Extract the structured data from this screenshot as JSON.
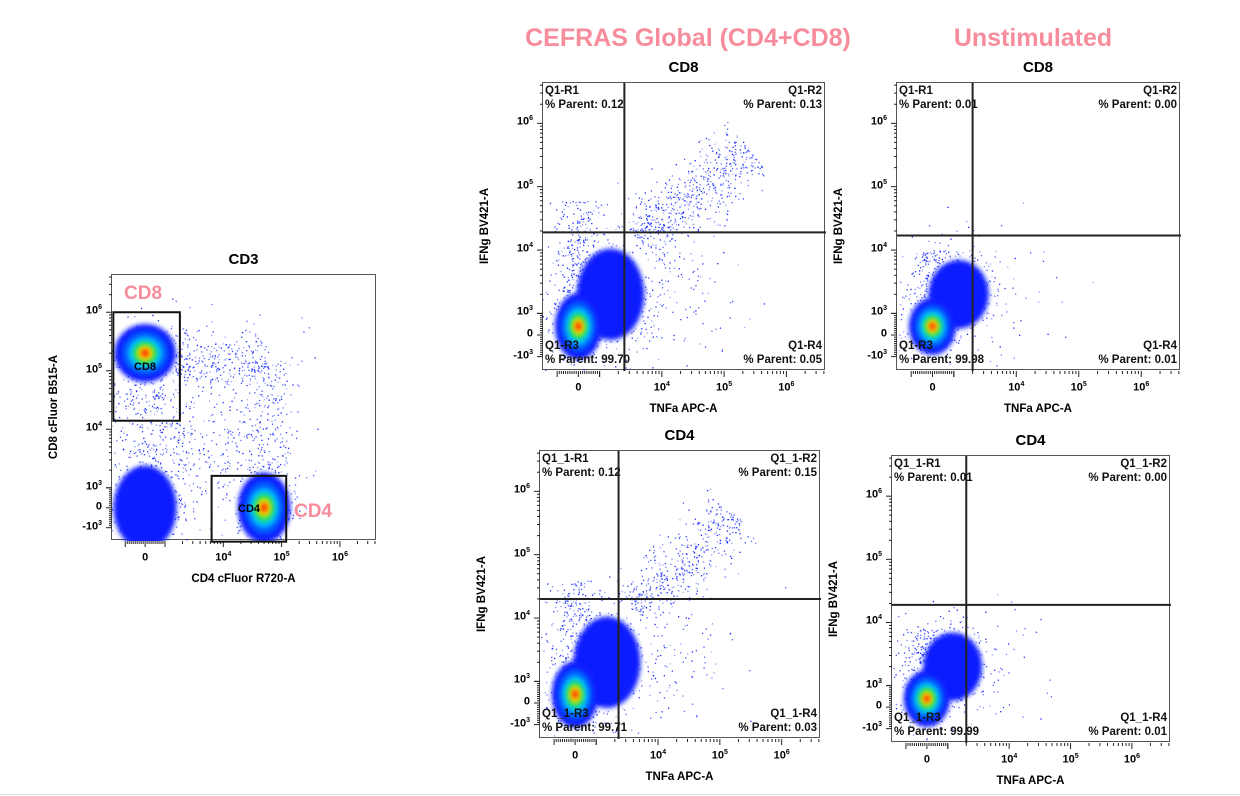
{
  "headers": {
    "stimulated": "CEFRAS Global (CD4+CD8)",
    "unstimulated": "Unstimulated"
  },
  "colors": {
    "header_pink": "#f78c9c",
    "event_blue": "#0a20ff",
    "density_scale": [
      "#0a1cff",
      "#0058ff",
      "#00c0ff",
      "#20e060",
      "#f0e000",
      "#ff2a00"
    ]
  },
  "chart_data": [
    {
      "id": "cd3",
      "type": "scatter",
      "title": "CD3",
      "xlabel": "CD4 cFluor R720-A",
      "ylabel": "CD8 cFluor B515-A",
      "scale": "biexponential",
      "x_ticks": [
        {
          "value": 0,
          "base": "0",
          "exp": ""
        },
        {
          "value": 10000,
          "base": "10",
          "exp": "4"
        },
        {
          "value": 100000,
          "base": "10",
          "exp": "5"
        },
        {
          "value": 1000000,
          "base": "10",
          "exp": "6"
        }
      ],
      "y_ticks": [
        {
          "value": 1000000,
          "base": "10",
          "exp": "6"
        },
        {
          "value": 100000,
          "base": "10",
          "exp": "5"
        },
        {
          "value": 10000,
          "base": "10",
          "exp": "4"
        },
        {
          "value": 1000,
          "base": "10",
          "exp": "3"
        },
        {
          "value": 0,
          "base": "0",
          "exp": ""
        },
        {
          "value": -1000,
          "base": "-10",
          "exp": "3"
        }
      ],
      "gates": [
        {
          "name": "CD8",
          "label": "CD8",
          "x": [
            -1600,
            1800
          ],
          "y": [
            14000,
            1000000
          ]
        },
        {
          "name": "CD4",
          "label": "CD4",
          "x": [
            6300,
            120000
          ],
          "y": [
            -1700,
            1600
          ]
        }
      ],
      "populations": [
        {
          "kind": "band",
          "from": [
            0,
            -600
          ],
          "to": [
            0,
            500000
          ],
          "width": 0.7,
          "n": 350
        },
        {
          "kind": "band",
          "from": [
            1500,
            150000
          ],
          "to": [
            60000,
            150000
          ],
          "width": 0.45,
          "n": 250
        },
        {
          "kind": "band",
          "from": [
            60000,
            -300
          ],
          "to": [
            60000,
            150000
          ],
          "width": 0.5,
          "n": 250
        },
        {
          "kind": "cluster",
          "x": 0,
          "y": 0,
          "sx": 0.45,
          "sy": 0.6,
          "n": 200,
          "hot": false
        },
        {
          "kind": "cluster",
          "x": 4000,
          "y": 8000,
          "sx": 0.8,
          "sy": 0.9,
          "n": 450,
          "hot": false
        },
        {
          "kind": "cluster",
          "x": 0,
          "y": 200000,
          "sx": 0.35,
          "sy": 0.33,
          "n": 150,
          "hot": true
        },
        {
          "kind": "cluster",
          "x": 50000,
          "y": 0,
          "sx": 0.3,
          "sy": 0.4,
          "n": 150,
          "hot": true
        }
      ]
    },
    {
      "id": "cd8-stim",
      "type": "scatter",
      "title": "CD8",
      "xlabel": "TNFa APC-A",
      "ylabel": "IFNg BV421-A",
      "scale": "biexponential",
      "x_ticks": [
        {
          "value": 0,
          "base": "0",
          "exp": ""
        },
        {
          "value": 10000,
          "base": "10",
          "exp": "4"
        },
        {
          "value": 100000,
          "base": "10",
          "exp": "5"
        },
        {
          "value": 1000000,
          "base": "10",
          "exp": "6"
        }
      ],
      "y_ticks": [
        {
          "value": 1000000,
          "base": "10",
          "exp": "6"
        },
        {
          "value": 100000,
          "base": "10",
          "exp": "5"
        },
        {
          "value": 10000,
          "base": "10",
          "exp": "4"
        },
        {
          "value": 1000,
          "base": "10",
          "exp": "3"
        },
        {
          "value": 0,
          "base": "0",
          "exp": ""
        },
        {
          "value": -1000,
          "base": "-10",
          "exp": "3"
        }
      ],
      "quadrant": {
        "x": 2500,
        "y": 19000
      },
      "quadrants": [
        {
          "name": "Q1-R1",
          "label": "% Parent:",
          "value": "0.12"
        },
        {
          "name": "Q1-R2",
          "label": "% Parent:",
          "value": "0.13"
        },
        {
          "name": "Q1-R3",
          "label": "% Parent:",
          "value": "99.70"
        },
        {
          "name": "Q1-R4",
          "label": "% Parent:",
          "value": "0.05"
        }
      ],
      "populations": [
        {
          "kind": "band",
          "from": [
            0,
            -300
          ],
          "to": [
            0,
            60000
          ],
          "width": 0.45,
          "n": 350
        },
        {
          "kind": "cluster",
          "x": 1500,
          "y": 2000,
          "sx": 0.45,
          "sy": 0.6,
          "n": 300,
          "hot": false
        },
        {
          "kind": "streak",
          "from": [
            4000,
            15000
          ],
          "to": [
            250000,
            400000
          ],
          "width": 0.45,
          "n": 550
        },
        {
          "kind": "cluster",
          "x": 15000,
          "y": 3000,
          "sx": 0.6,
          "sy": 0.7,
          "n": 150,
          "hot": false
        },
        {
          "kind": "cluster",
          "x": 0,
          "y": 400,
          "sx": 0.25,
          "sy": 0.35,
          "n": 150,
          "hot": true
        }
      ]
    },
    {
      "id": "cd8-unstim",
      "type": "scatter",
      "title": "CD8",
      "xlabel": "TNFa APC-A",
      "ylabel": "IFNg BV421-A",
      "scale": "biexponential",
      "x_ticks": [
        {
          "value": 0,
          "base": "0",
          "exp": ""
        },
        {
          "value": 10000,
          "base": "10",
          "exp": "4"
        },
        {
          "value": 100000,
          "base": "10",
          "exp": "5"
        },
        {
          "value": 1000000,
          "base": "10",
          "exp": "6"
        }
      ],
      "y_ticks": [
        {
          "value": 1000000,
          "base": "10",
          "exp": "6"
        },
        {
          "value": 100000,
          "base": "10",
          "exp": "5"
        },
        {
          "value": 10000,
          "base": "10",
          "exp": "4"
        },
        {
          "value": 1000,
          "base": "10",
          "exp": "3"
        },
        {
          "value": 0,
          "base": "0",
          "exp": ""
        },
        {
          "value": -1000,
          "base": "-10",
          "exp": "3"
        }
      ],
      "quadrant": {
        "x": 2000,
        "y": 17000
      },
      "quadrants": [
        {
          "name": "Q1-R1",
          "label": "% Parent:",
          "value": "0.01"
        },
        {
          "name": "Q1-R2",
          "label": "% Parent:",
          "value": "0.00"
        },
        {
          "name": "Q1-R3",
          "label": "% Parent:",
          "value": "99.98"
        },
        {
          "name": "Q1-R4",
          "label": "% Parent:",
          "value": "0.01"
        }
      ],
      "populations": [
        {
          "kind": "band",
          "from": [
            0,
            -300
          ],
          "to": [
            0,
            10000
          ],
          "width": 0.4,
          "n": 300
        },
        {
          "kind": "cluster",
          "x": 1200,
          "y": 2000,
          "sx": 0.4,
          "sy": 0.45,
          "n": 250,
          "hot": false
        },
        {
          "kind": "cluster",
          "x": 6000,
          "y": 3000,
          "sx": 0.5,
          "sy": 0.6,
          "n": 40,
          "hot": false
        },
        {
          "kind": "cluster",
          "x": 0,
          "y": 400,
          "sx": 0.25,
          "sy": 0.3,
          "n": 100,
          "hot": true
        }
      ]
    },
    {
      "id": "cd4-stim",
      "type": "scatter",
      "title": "CD4",
      "xlabel": "TNFa APC-A",
      "ylabel": "IFNg BV421-A",
      "scale": "biexponential",
      "x_ticks": [
        {
          "value": 0,
          "base": "0",
          "exp": ""
        },
        {
          "value": 10000,
          "base": "10",
          "exp": "4"
        },
        {
          "value": 100000,
          "base": "10",
          "exp": "5"
        },
        {
          "value": 1000000,
          "base": "10",
          "exp": "6"
        }
      ],
      "y_ticks": [
        {
          "value": 1000000,
          "base": "10",
          "exp": "6"
        },
        {
          "value": 100000,
          "base": "10",
          "exp": "5"
        },
        {
          "value": 10000,
          "base": "10",
          "exp": "4"
        },
        {
          "value": 1000,
          "base": "10",
          "exp": "3"
        },
        {
          "value": 0,
          "base": "0",
          "exp": ""
        },
        {
          "value": -1000,
          "base": "-10",
          "exp": "3"
        }
      ],
      "quadrant": {
        "x": 2300,
        "y": 20000
      },
      "quadrants": [
        {
          "name": "Q1_1-R1",
          "label": "% Parent:",
          "value": "0.12"
        },
        {
          "name": "Q1_1-R2",
          "label": "% Parent:",
          "value": "0.15"
        },
        {
          "name": "Q1_1-R3",
          "label": "% Parent:",
          "value": "99.71"
        },
        {
          "name": "Q1_1-R4",
          "label": "% Parent:",
          "value": "0.03"
        }
      ],
      "populations": [
        {
          "kind": "band",
          "from": [
            0,
            -300
          ],
          "to": [
            0,
            40000
          ],
          "width": 0.45,
          "n": 350
        },
        {
          "kind": "cluster",
          "x": 1500,
          "y": 2000,
          "sx": 0.45,
          "sy": 0.6,
          "n": 300,
          "hot": false
        },
        {
          "kind": "streak",
          "from": [
            4000,
            15000
          ],
          "to": [
            200000,
            400000
          ],
          "width": 0.45,
          "n": 450
        },
        {
          "kind": "cluster",
          "x": 15000,
          "y": 3000,
          "sx": 0.6,
          "sy": 0.7,
          "n": 100,
          "hot": false
        },
        {
          "kind": "cluster",
          "x": 0,
          "y": 400,
          "sx": 0.25,
          "sy": 0.35,
          "n": 150,
          "hot": true
        }
      ]
    },
    {
      "id": "cd4-unstim",
      "type": "scatter",
      "title": "CD4",
      "xlabel": "TNFa APC-A",
      "ylabel": "IFNg BV421-A",
      "scale": "biexponential",
      "x_ticks": [
        {
          "value": 0,
          "base": "0",
          "exp": ""
        },
        {
          "value": 10000,
          "base": "10",
          "exp": "4"
        },
        {
          "value": 100000,
          "base": "10",
          "exp": "5"
        },
        {
          "value": 1000000,
          "base": "10",
          "exp": "6"
        }
      ],
      "y_ticks": [
        {
          "value": 1000000,
          "base": "10",
          "exp": "6"
        },
        {
          "value": 100000,
          "base": "10",
          "exp": "5"
        },
        {
          "value": 10000,
          "base": "10",
          "exp": "4"
        },
        {
          "value": 1000,
          "base": "10",
          "exp": "3"
        },
        {
          "value": 0,
          "base": "0",
          "exp": ""
        },
        {
          "value": -1000,
          "base": "-10",
          "exp": "3"
        }
      ],
      "quadrant": {
        "x": 2000,
        "y": 19000
      },
      "quadrants": [
        {
          "name": "Q1_1-R1",
          "label": "% Parent:",
          "value": "0.01"
        },
        {
          "name": "Q1_1-R2",
          "label": "% Parent:",
          "value": "0.00"
        },
        {
          "name": "Q1_1-R3",
          "label": "% Parent:",
          "value": "99.99"
        },
        {
          "name": "Q1_1-R4",
          "label": "% Parent:",
          "value": "0.01"
        }
      ],
      "populations": [
        {
          "kind": "band",
          "from": [
            0,
            -300
          ],
          "to": [
            0,
            8000
          ],
          "width": 0.4,
          "n": 300
        },
        {
          "kind": "cluster",
          "x": 1200,
          "y": 2000,
          "sx": 0.4,
          "sy": 0.45,
          "n": 250,
          "hot": false
        },
        {
          "kind": "cluster",
          "x": 5000,
          "y": 3000,
          "sx": 0.5,
          "sy": 0.6,
          "n": 40,
          "hot": false
        },
        {
          "kind": "cluster",
          "x": 0,
          "y": 400,
          "sx": 0.25,
          "sy": 0.3,
          "n": 100,
          "hot": true
        }
      ]
    }
  ]
}
